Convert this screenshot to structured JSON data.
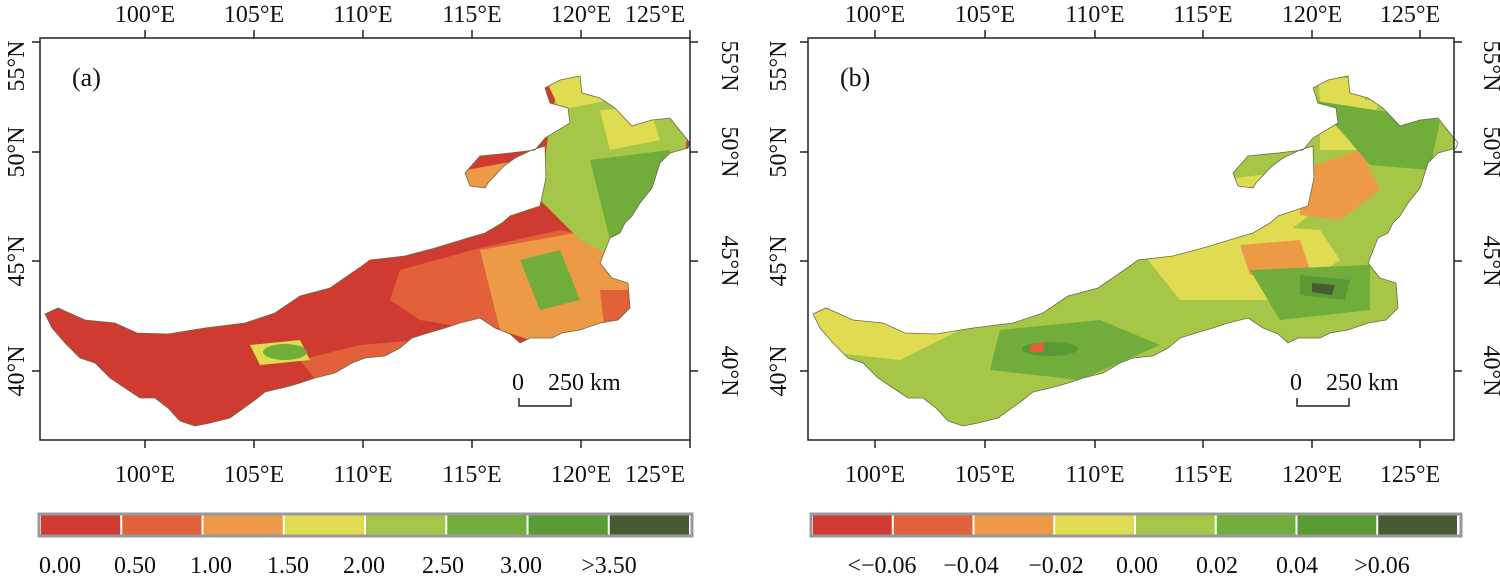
{
  "colors": {
    "a": [
      "#cf3b30",
      "#e2603a",
      "#ec9a45",
      "#e0dc52",
      "#a6c647",
      "#70ad3b",
      "#5a9a35",
      "#475a33"
    ],
    "b": [
      "#cf3b30",
      "#e2603a",
      "#ec9a45",
      "#e0dc52",
      "#a6c647",
      "#70ad3b",
      "#5a9a35",
      "#475a33"
    ]
  },
  "axes": {
    "lon_ticks": [
      "100°E",
      "105°E",
      "110°E",
      "115°E",
      "120°E",
      "125°E"
    ],
    "lat_ticks": [
      "55°N",
      "50°N",
      "45°N",
      "40°N"
    ]
  },
  "panels": [
    {
      "label": "(a)",
      "scale": {
        "zero": "0",
        "text": "250 km"
      },
      "legend_labels": [
        "0.00",
        "0.50",
        "1.00",
        "1.50",
        "2.00",
        "2.50",
        "3.00",
        ">3.50"
      ]
    },
    {
      "label": "(b)",
      "scale": {
        "zero": "0",
        "text": "250 km"
      },
      "legend_labels": [
        "<−0.06",
        "−0.04",
        "−0.02",
        "0.00",
        "0.02",
        "0.04",
        ">0.06"
      ]
    }
  ]
}
